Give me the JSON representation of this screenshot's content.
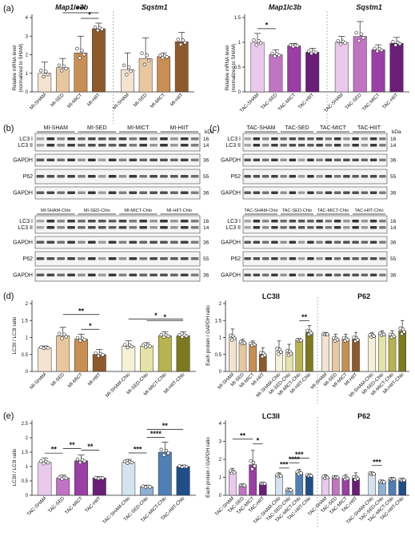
{
  "panel_letters": [
    "(a)",
    "(b)",
    "(c)",
    "(d)",
    "(e)"
  ],
  "ylabel_mrna": "Relative mRNA level",
  "ylabel_mrna_sub": "(normalized to SHAM)",
  "ylabel_lc3ratio": "LC3II / LC3I ratio",
  "ylabel_gapdh": "Each protein / GAPDH ratio",
  "kda": "kDa",
  "blots": {
    "b_groups": [
      "MI-SHAM",
      "MI-SED",
      "MI-MICT",
      "MI-HIIT"
    ],
    "b_chlo_groups": [
      "MI-SHAM-Chlo",
      "MI-SED-Chlo",
      "MI-MICT-Chlo",
      "MI-HIIT-Chlo"
    ],
    "c_groups": [
      "TAC-SHAM",
      "TAC-SED",
      "TAC-MICT",
      "TAC-HIIT"
    ],
    "c_chlo_groups": [
      "TAC-SHAM-Chlo",
      "TAC-SED-Chlo",
      "TAC-MICT-Chlo",
      "TAC-HIIT-Chlo"
    ],
    "lc3_i": "LC3 I",
    "lc3_ii": "LC3 II",
    "gapdh": "GAPDH",
    "p62": "P62",
    "mw_lc3_i": "16",
    "mw_lc3_ii": "14",
    "mw_gapdh": "36",
    "mw_p62": "55"
  },
  "chart_data": [
    {
      "id": "a_MI",
      "type": "bar",
      "titles": [
        "Map1lc3b",
        "Sqstm1"
      ],
      "categories": [
        "MI-SHAM",
        "MI-SED",
        "MI-MICT",
        "MI-HIIT",
        "MI-SHAM",
        "MI-SED",
        "MI-MICT",
        "MI-HIIT"
      ],
      "values": [
        1.0,
        1.3,
        2.1,
        3.4,
        1.2,
        1.8,
        1.9,
        2.7
      ],
      "errors": [
        0.6,
        0.5,
        0.9,
        0.3,
        0.9,
        1.1,
        0.2,
        0.5
      ],
      "colors": [
        "#f3e3cf",
        "#e9c79e",
        "#c98f52",
        "#8e5a2b",
        "#f3e3cf",
        "#e9c79e",
        "#c98f52",
        "#8e5a2b"
      ],
      "ylim": [
        0,
        4
      ],
      "yticks": [
        0,
        1,
        2,
        3,
        4
      ],
      "annotations": [
        {
          "from": 2,
          "to": 3,
          "text": "*"
        },
        {
          "from": 1,
          "to": 3,
          "text": "***"
        }
      ]
    },
    {
      "id": "a_TAC",
      "type": "bar",
      "titles": [
        "Map1lc3b",
        "Sqstm1"
      ],
      "categories": [
        "TAC-SHAM",
        "TAC-SED",
        "TAC-MICT",
        "TAC-HIIT",
        "TAC-SHAM",
        "TAC-SED",
        "TAC-MICT",
        "TAC-HIIT"
      ],
      "values": [
        1.0,
        0.75,
        0.93,
        0.8,
        1.0,
        1.12,
        0.85,
        0.98
      ],
      "errors": [
        0.18,
        0.1,
        0.05,
        0.08,
        0.12,
        0.3,
        0.1,
        0.12
      ],
      "colors": [
        "#eac9ec",
        "#c173c4",
        "#9b3ea5",
        "#6a1e78",
        "#eac9ec",
        "#c173c4",
        "#9b3ea5",
        "#6a1e78"
      ],
      "ylim": [
        0,
        1.5
      ],
      "yticks": [
        0.0,
        0.5,
        1.0,
        1.5
      ],
      "annotations": [
        {
          "from": 0,
          "to": 1,
          "text": "*"
        }
      ]
    },
    {
      "id": "d_ratio",
      "type": "bar",
      "categories": [
        "MI-SHAM",
        "MI-SED",
        "MI-MICT",
        "MI-HIIT",
        "MI-SHAM-Chlo",
        "MI-SED-Chlo",
        "MI-MICT-Chlo",
        "MI-HIIT-Chlo"
      ],
      "values": [
        0.7,
        1.05,
        0.95,
        0.5,
        0.75,
        0.75,
        1.05,
        1.05
      ],
      "errors": [
        0.05,
        0.25,
        0.15,
        0.15,
        0.15,
        0.1,
        0.12,
        0.12
      ],
      "colors": [
        "#f3e3cf",
        "#e9c79e",
        "#c98f52",
        "#8e5a2b",
        "#f6f1d6",
        "#e6e3a9",
        "#b7b34f",
        "#7d7a1e"
      ],
      "ylim": [
        0,
        2.0
      ],
      "yticks": [
        0.0,
        0.5,
        1.0,
        1.5,
        2.0
      ],
      "annotations": [
        {
          "from": 2,
          "to": 3,
          "text": "*"
        },
        {
          "from": 1,
          "to": 3,
          "text": "**"
        },
        {
          "from": 5,
          "to": 7,
          "text": "*"
        },
        {
          "from": 4,
          "to": 7,
          "text": "*"
        }
      ]
    },
    {
      "id": "d_protein",
      "type": "bar",
      "titles": [
        "LC3II",
        "P62"
      ],
      "categories": [
        "MI-SHAM",
        "MI-SED",
        "MI-MICT",
        "MI-HIIT",
        "MI-SHAM-Chlo",
        "MI-SED-Chlo",
        "MI-MICT-Chlo",
        "MI-HIIT-Chlo",
        "MI-SHAM",
        "MI-SED",
        "MI-MICT",
        "MI-HIIT",
        "MI-SHAM-Chlo",
        "MI-SED-Chlo",
        "MI-MICT-Chlo",
        "MI-HIIT-Chlo"
      ],
      "values": [
        1.0,
        0.85,
        0.8,
        0.5,
        0.6,
        0.55,
        0.92,
        1.15,
        1.1,
        0.95,
        0.95,
        0.95,
        1.05,
        1.1,
        1.05,
        1.2
      ],
      "errors": [
        0.25,
        0.1,
        0.1,
        0.2,
        0.3,
        0.25,
        0.05,
        0.2,
        0.05,
        0.15,
        0.15,
        0.2,
        0.1,
        0.1,
        0.15,
        0.3
      ],
      "colors": [
        "#f3e3cf",
        "#e9c79e",
        "#c98f52",
        "#8e5a2b",
        "#f6f1d6",
        "#e6e3a9",
        "#b7b34f",
        "#7d7a1e",
        "#f3e3cf",
        "#e9c79e",
        "#c98f52",
        "#8e5a2b",
        "#f6f1d6",
        "#e6e3a9",
        "#b7b34f",
        "#7d7a1e"
      ],
      "ylim": [
        0,
        2.0
      ],
      "yticks": [
        0.0,
        0.5,
        1.0,
        1.5,
        2.0
      ],
      "annotations": [
        {
          "from": 6,
          "to": 7,
          "text": "**"
        }
      ]
    },
    {
      "id": "e_ratio",
      "type": "bar",
      "categories": [
        "TAC-SHAM",
        "TAC-SED",
        "TAC-MICT",
        "TAC-HIIT",
        "TAC-SHAM-Chlo",
        "TAC-SED-Chlo",
        "TAC-MICT-Chlo",
        "TAC-HIIT-Chlo"
      ],
      "values": [
        1.15,
        0.6,
        1.2,
        0.6,
        1.15,
        0.3,
        1.5,
        1.0
      ],
      "errors": [
        0.15,
        0.1,
        0.2,
        0.05,
        0.1,
        0.05,
        0.35,
        0.05
      ],
      "colors": [
        "#eac9ec",
        "#c173c4",
        "#9b3ea5",
        "#6a1e78",
        "#d5e2ef",
        "#8fb0d3",
        "#4f7fb5",
        "#1f4f8a"
      ],
      "ylim": [
        0,
        2.5
      ],
      "yticks": [
        0.0,
        0.5,
        1.0,
        1.5,
        2.0,
        2.5
      ],
      "annotations": [
        {
          "from": 0,
          "to": 1,
          "text": "**"
        },
        {
          "from": 1,
          "to": 2,
          "text": "**"
        },
        {
          "from": 2,
          "to": 3,
          "text": "**"
        },
        {
          "from": 4,
          "to": 5,
          "text": "***"
        },
        {
          "from": 5,
          "to": 6,
          "text": "****"
        },
        {
          "from": 5,
          "to": 7,
          "text": "**"
        }
      ]
    },
    {
      "id": "e_protein",
      "type": "bar",
      "titles": [
        "LC3II",
        "P62"
      ],
      "categories": [
        "TAC-SHAM",
        "TAC-SED",
        "TAC-MICT",
        "TAC-HIIT",
        "TAC-SHAM-Chlo",
        "TAC-SED-Chlo",
        "TAC-MICT-Chlo",
        "TAC-HIIT-Chlo",
        "TAC-SHAM",
        "TAC-SED",
        "TAC-MICT",
        "TAC-HIIT",
        "TAC-SHAM-Chlo",
        "TAC-SED-Chlo",
        "TAC-MICT-Chlo",
        "TAC-HIIT-Chlo"
      ],
      "values": [
        1.3,
        0.55,
        1.7,
        0.65,
        1.1,
        0.3,
        1.25,
        1.1,
        1.0,
        1.0,
        0.95,
        0.95,
        1.2,
        0.75,
        0.9,
        0.85
      ],
      "errors": [
        0.2,
        0.05,
        0.8,
        0.05,
        0.15,
        0.1,
        0.2,
        0.1,
        0.15,
        0.1,
        0.2,
        0.3,
        0.1,
        0.1,
        0.1,
        0.1
      ],
      "colors": [
        "#eac9ec",
        "#c173c4",
        "#9b3ea5",
        "#6a1e78",
        "#d5e2ef",
        "#8fb0d3",
        "#4f7fb5",
        "#1f4f8a",
        "#eac9ec",
        "#c173c4",
        "#9b3ea5",
        "#6a1e78",
        "#d5e2ef",
        "#8fb0d3",
        "#4f7fb5",
        "#1f4f8a"
      ],
      "ylim": [
        0,
        4
      ],
      "yticks": [
        0,
        1,
        2,
        3,
        4
      ],
      "annotations": [
        {
          "from": 0,
          "to": 2,
          "text": "**"
        },
        {
          "from": 2,
          "to": 3,
          "text": "*"
        },
        {
          "from": 4,
          "to": 5,
          "text": "***"
        },
        {
          "from": 5,
          "to": 6,
          "text": "****"
        },
        {
          "from": 5,
          "to": 7,
          "text": "***"
        },
        {
          "from": 12,
          "to": 13,
          "text": "***"
        }
      ]
    }
  ]
}
